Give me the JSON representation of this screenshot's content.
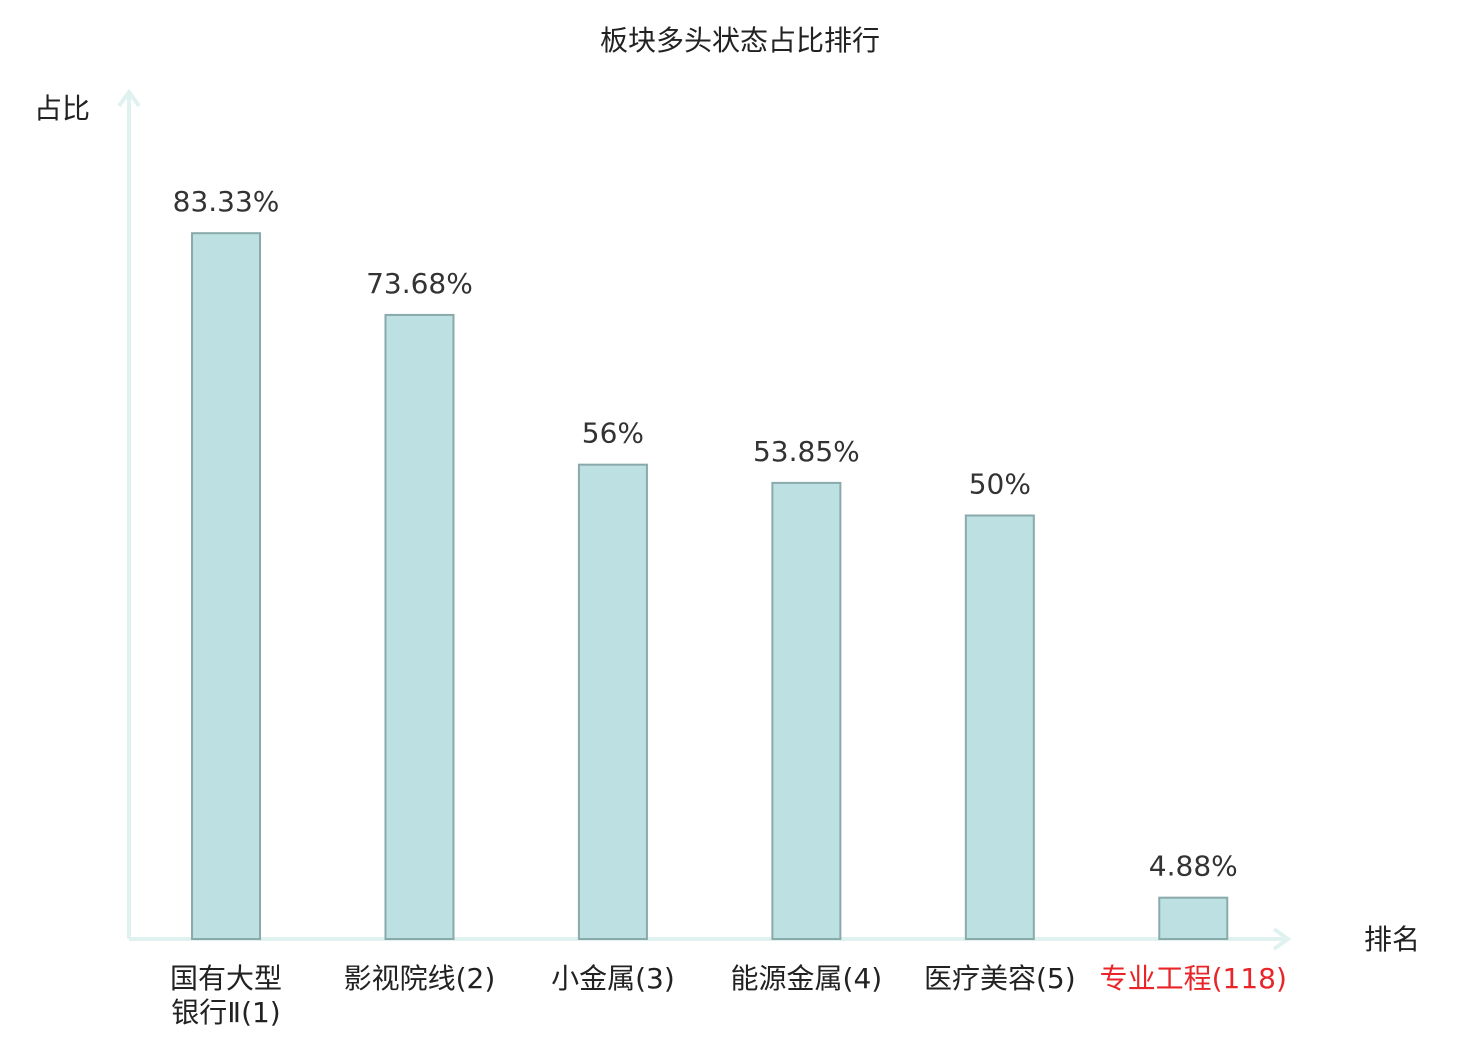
{
  "chart_data": {
    "type": "bar",
    "title": "板块多头状态占比排行",
    "y_label": "占比",
    "x_label": "排名",
    "categories": [
      "国有大型银行Ⅱ(1)",
      "影视院线(2)",
      "小金属(3)",
      "能源金属(4)",
      "医疗美容(5)",
      "专业工程(118)"
    ],
    "category_colors": [
      "#222222",
      "#222222",
      "#222222",
      "#222222",
      "#222222",
      "#e8262a"
    ],
    "values": [
      83.33,
      73.68,
      56,
      53.85,
      50,
      4.88
    ],
    "value_labels": [
      "83.33%",
      "73.68%",
      "56%",
      "53.85%",
      "50%",
      "4.88%"
    ],
    "color": "#bde0e2",
    "ylim": [
      0,
      100
    ]
  }
}
